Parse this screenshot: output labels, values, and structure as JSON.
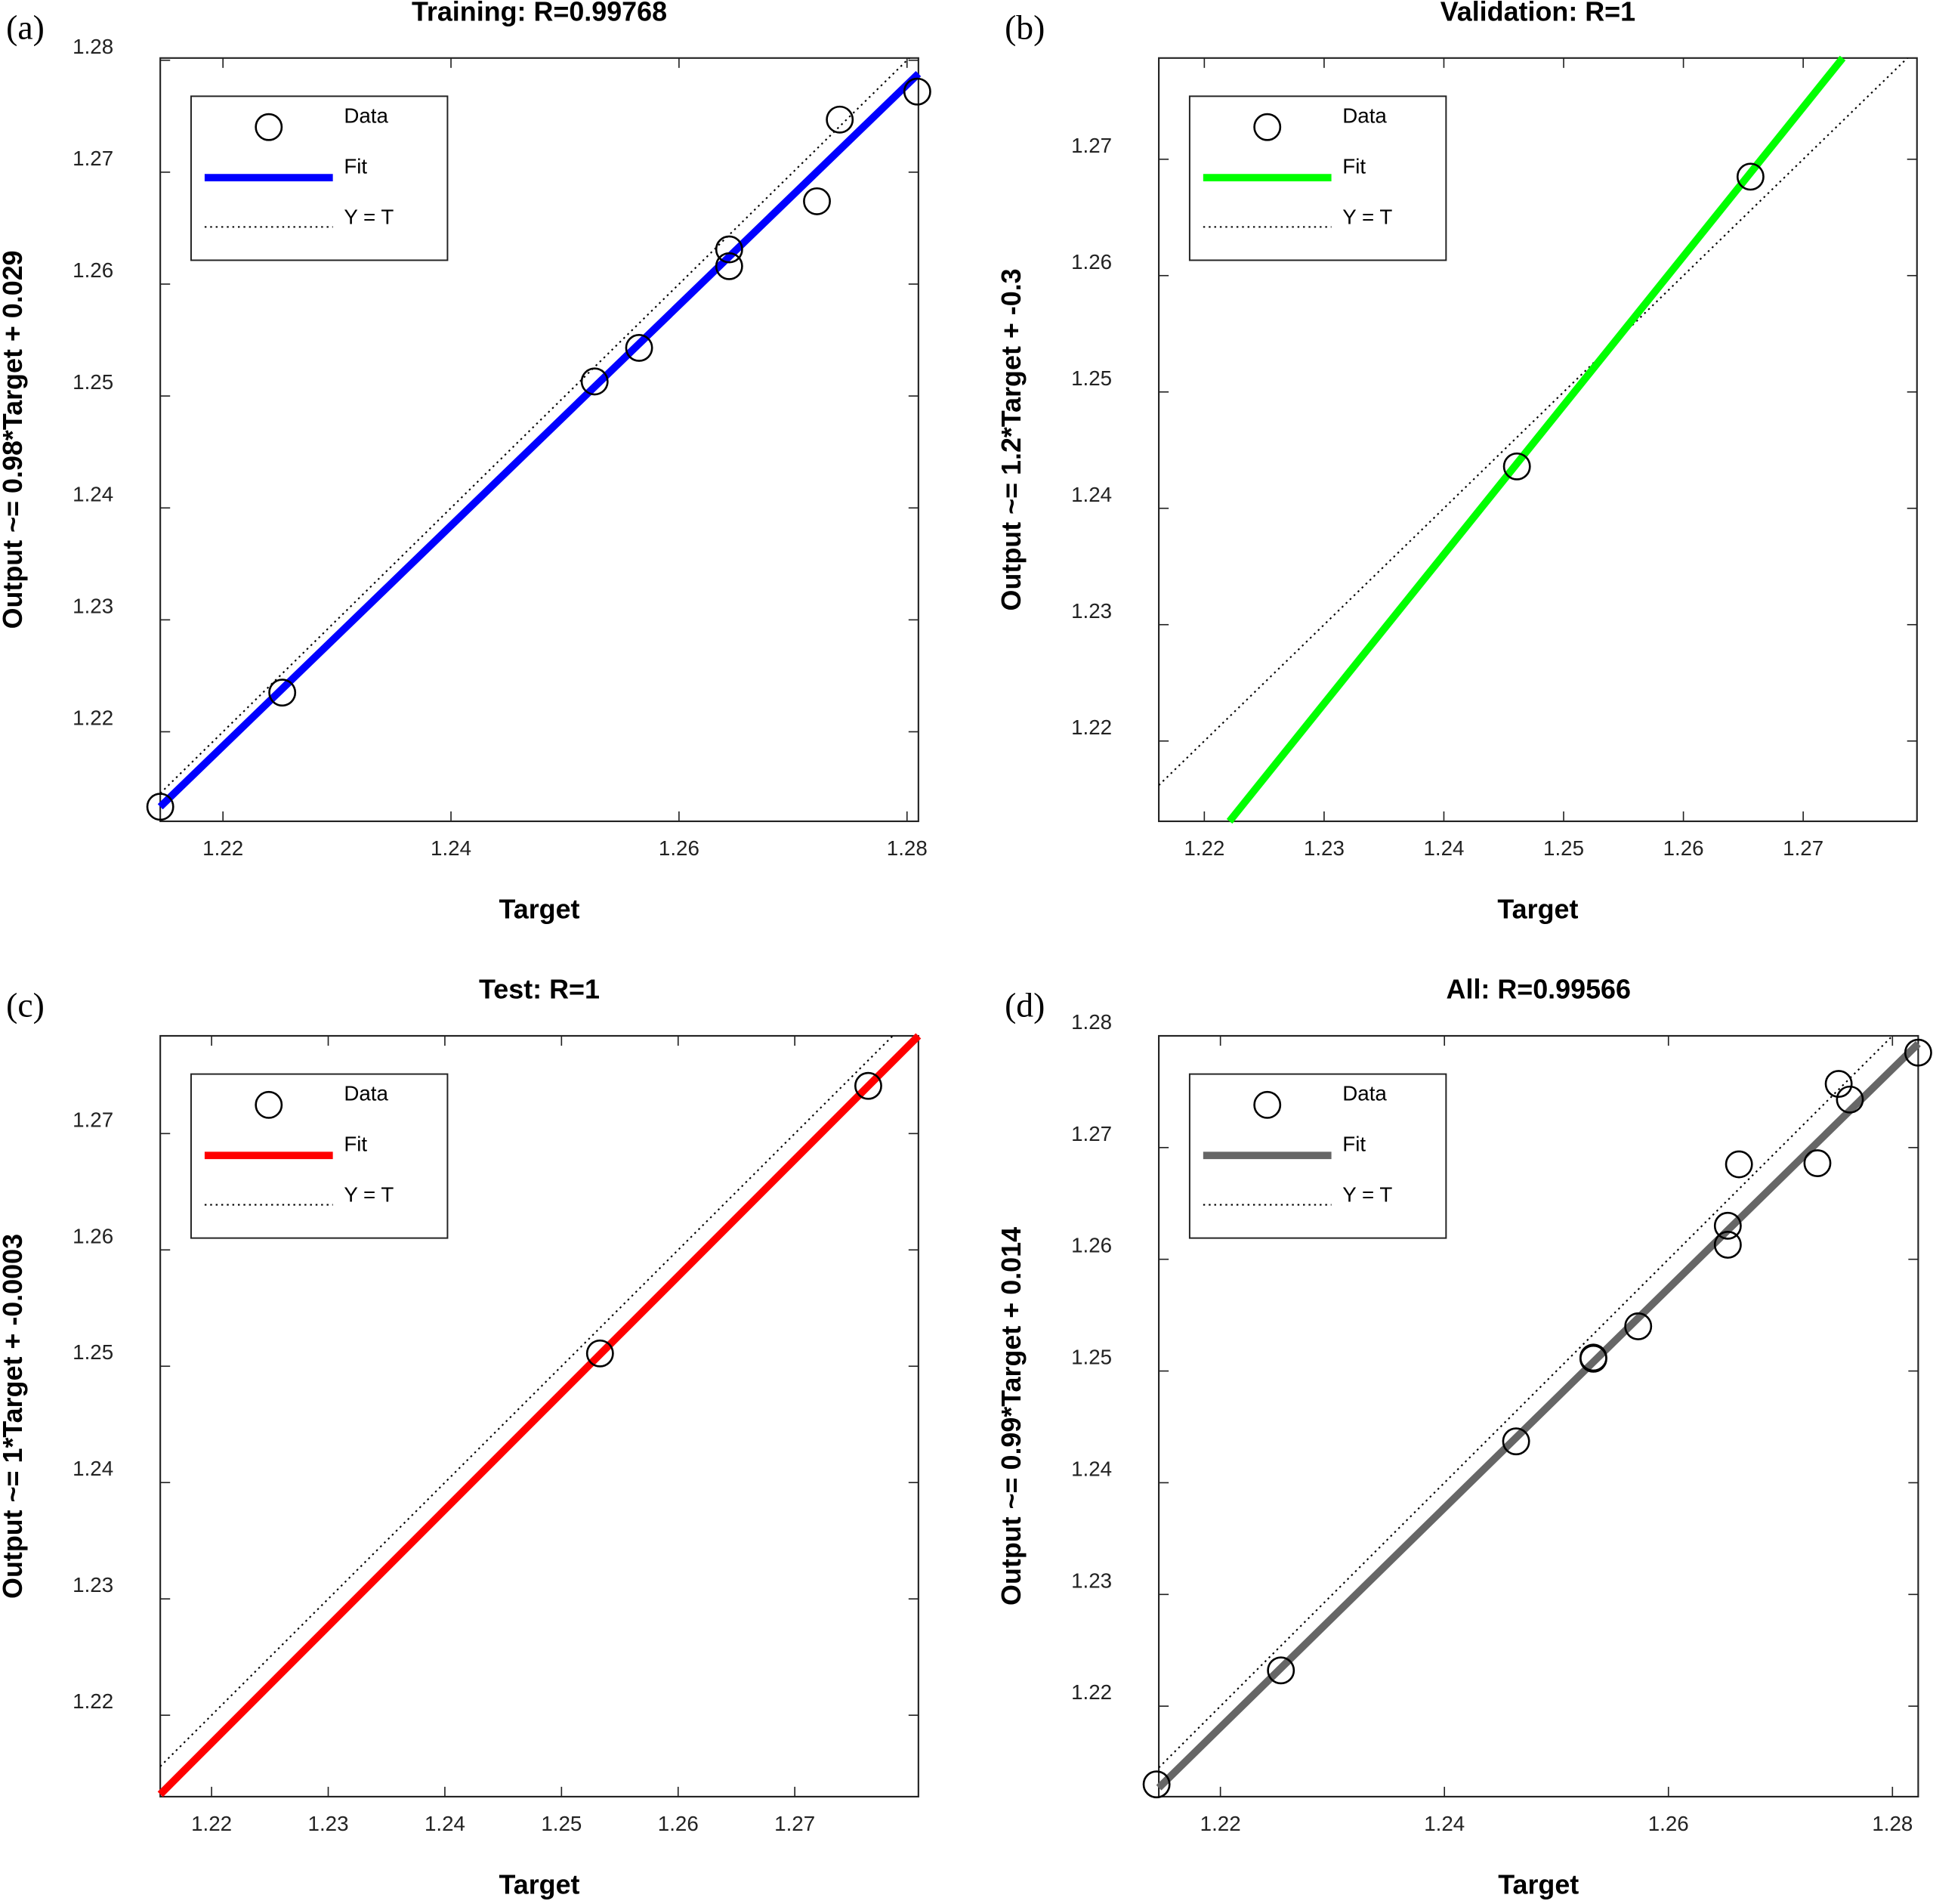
{
  "chart_data": [
    {
      "type": "scatter",
      "panel_label": "(a)",
      "title": "Training: R=0.99768",
      "xlabel": "Target",
      "ylabel": "Output ~= 0.98*Target + 0.029",
      "xlim": [
        1.2145,
        1.281
      ],
      "ylim": [
        1.212,
        1.2802
      ],
      "xticks": [
        1.22,
        1.24,
        1.26,
        1.28
      ],
      "yticks": [
        1.22,
        1.23,
        1.24,
        1.25,
        1.26,
        1.27,
        1.28
      ],
      "series": [
        {
          "name": "Data",
          "color": "#000000",
          "x": [
            1.2145,
            1.2252,
            1.2526,
            1.2565,
            1.2644,
            1.2644,
            1.2721,
            1.2741,
            1.2809
          ],
          "values": [
            1.2133,
            1.2235,
            1.2513,
            1.2543,
            1.2631,
            1.2616,
            1.2674,
            1.2747,
            1.2772
          ]
        },
        {
          "name": "Fit",
          "color": "#0000ff",
          "x": [
            1.2145,
            1.281
          ],
          "values": [
            1.2133,
            1.2788
          ]
        },
        {
          "name": "Y = T",
          "color": "#000000"
        }
      ]
    },
    {
      "type": "scatter",
      "panel_label": "(b)",
      "title": "Validation: R=1",
      "xlabel": "Target",
      "ylabel": "Output ~= 1.2*Target + -0.3",
      "xlim": [
        1.2162,
        1.2795
      ],
      "ylim": [
        1.2131,
        1.2787
      ],
      "xticks": [
        1.22,
        1.23,
        1.24,
        1.25,
        1.26,
        1.27
      ],
      "yticks": [
        1.22,
        1.23,
        1.24,
        1.25,
        1.26,
        1.27
      ],
      "series": [
        {
          "name": "Data",
          "color": "#000000",
          "x": [
            1.2461,
            1.2656
          ],
          "values": [
            1.2436,
            1.2685
          ]
        },
        {
          "name": "Fit",
          "color": "#00ff00",
          "x": [
            1.2221,
            1.2733
          ],
          "values": [
            1.2131,
            1.2787
          ]
        },
        {
          "name": "Y = T",
          "color": "#000000"
        }
      ]
    },
    {
      "type": "scatter",
      "panel_label": "(c)",
      "title": "Test: R=1",
      "xlabel": "Target",
      "ylabel": "Output ~= 1*Target + -0.0003",
      "xlim": [
        1.2156,
        1.2806
      ],
      "ylim": [
        1.213,
        1.2784
      ],
      "xticks": [
        1.22,
        1.23,
        1.24,
        1.25,
        1.26,
        1.27
      ],
      "yticks": [
        1.22,
        1.23,
        1.24,
        1.25,
        1.26,
        1.27
      ],
      "series": [
        {
          "name": "Data",
          "color": "#000000",
          "x": [
            1.2533,
            1.2763
          ],
          "values": [
            1.2511,
            1.2741
          ]
        },
        {
          "name": "Fit",
          "color": "#ff0000",
          "x": [
            1.2156,
            1.2806
          ],
          "values": [
            1.2132,
            1.2784
          ]
        },
        {
          "name": "Y = T",
          "color": "#000000"
        }
      ]
    },
    {
      "type": "scatter",
      "panel_label": "(d)",
      "title": "All: R=0.99566",
      "xlabel": "Target",
      "ylabel": "Output ~= 0.99*Target + 0.014",
      "xlim": [
        1.2145,
        1.2823
      ],
      "ylim": [
        1.2119,
        1.28
      ],
      "xticks": [
        1.22,
        1.24,
        1.26,
        1.28
      ],
      "yticks": [
        1.22,
        1.23,
        1.24,
        1.25,
        1.26,
        1.27,
        1.28
      ],
      "series": [
        {
          "name": "Data",
          "color": "#000000",
          "x": [
            1.2143,
            1.2254,
            1.2464,
            1.2533,
            1.2533,
            1.2573,
            1.2653,
            1.2653,
            1.2663,
            1.2733,
            1.2752,
            1.2762,
            1.2823
          ],
          "values": [
            1.213,
            1.2232,
            1.2437,
            1.2512,
            1.2511,
            1.254,
            1.263,
            1.2613,
            1.2685,
            1.2686,
            1.2757,
            1.2743,
            1.2785
          ]
        },
        {
          "name": "Fit",
          "color": "#666666",
          "x": [
            1.2145,
            1.2823
          ],
          "values": [
            1.2127,
            1.2793
          ]
        },
        {
          "name": "Y = T",
          "color": "#000000"
        }
      ]
    }
  ]
}
